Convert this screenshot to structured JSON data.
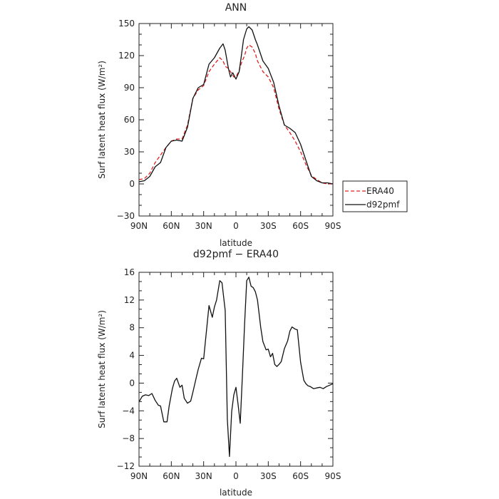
{
  "chart_data": [
    {
      "type": "line",
      "title": "ANN",
      "xlabel": "latitude",
      "ylabel": "Surf latent heat flux (W/m²)",
      "xlim": [
        -90,
        90
      ],
      "ylim": [
        -30,
        150
      ],
      "x_ticks": [
        "90N",
        "60N",
        "30N",
        "0",
        "30S",
        "60S",
        "90S"
      ],
      "y_ticks": [
        "−30",
        "0",
        "30",
        "60",
        "90",
        "120",
        "150"
      ],
      "legend": "right",
      "series": [
        {
          "name": "ERA40",
          "color": "#e02020",
          "dash": true,
          "x": [
            -90,
            -85,
            -80,
            -75,
            -70,
            -65,
            -60,
            -55,
            -50,
            -45,
            -40,
            -35,
            -30,
            -25,
            -20,
            -15,
            -12,
            -10,
            -7,
            -5,
            -2,
            0,
            3,
            5,
            8,
            10,
            12,
            15,
            18,
            20,
            25,
            30,
            35,
            40,
            45,
            50,
            55,
            60,
            65,
            70,
            75,
            80,
            85,
            90
          ],
          "y": [
            4,
            5,
            10,
            20,
            27,
            34,
            40,
            42,
            42,
            55,
            80,
            88,
            92,
            105,
            112,
            118,
            115,
            110,
            108,
            105,
            100,
            100,
            106,
            113,
            120,
            127,
            130,
            128,
            122,
            115,
            105,
            100,
            90,
            70,
            55,
            48,
            40,
            30,
            18,
            8,
            4,
            1,
            0,
            0
          ]
        },
        {
          "name": "d92pmf",
          "color": "#111111",
          "dash": false,
          "x": [
            -90,
            -85,
            -80,
            -75,
            -70,
            -65,
            -60,
            -55,
            -50,
            -45,
            -40,
            -35,
            -30,
            -25,
            -20,
            -15,
            -12,
            -10,
            -7,
            -5,
            -3,
            0,
            3,
            5,
            7,
            10,
            12,
            15,
            18,
            20,
            25,
            30,
            35,
            40,
            45,
            50,
            55,
            60,
            65,
            70,
            75,
            80,
            85,
            90
          ],
          "y": [
            2,
            3,
            7,
            16,
            20,
            34,
            40,
            41,
            40,
            53,
            80,
            90,
            93,
            112,
            118,
            127,
            131,
            125,
            108,
            100,
            104,
            98,
            105,
            120,
            135,
            145,
            147,
            144,
            135,
            130,
            115,
            108,
            95,
            73,
            55,
            52,
            48,
            37,
            22,
            7,
            3,
            1,
            1,
            0
          ]
        }
      ]
    },
    {
      "type": "line",
      "title": "d92pmf − ERA40",
      "xlabel": "latitude",
      "ylabel": "Surf latent heat flux (W/m²)",
      "xlim": [
        -90,
        90
      ],
      "ylim": [
        -12,
        16
      ],
      "x_ticks": [
        "90N",
        "60N",
        "30N",
        "0",
        "30S",
        "60S",
        "90S"
      ],
      "y_ticks": [
        "−12",
        "−8",
        "−4",
        "0",
        "4",
        "8",
        "12",
        "16"
      ],
      "series": [
        {
          "color": "#111111",
          "x": [
            -90,
            -87,
            -84,
            -81,
            -78,
            -75,
            -72,
            -70,
            -67,
            -64,
            -62,
            -59,
            -57,
            -55,
            -52,
            -50,
            -48,
            -45,
            -42,
            -40,
            -37,
            -35,
            -32,
            -30,
            -28,
            -25,
            -22,
            -20,
            -18,
            -15,
            -13,
            -10,
            -8,
            -6,
            -4,
            -2,
            0,
            2,
            4,
            6,
            8,
            10,
            12,
            14,
            16,
            18,
            20,
            23,
            25,
            28,
            30,
            32,
            34,
            36,
            38,
            40,
            42,
            45,
            48,
            50,
            52,
            55,
            57,
            60,
            63,
            65,
            67,
            69,
            72,
            75,
            78,
            81,
            84,
            87,
            90
          ],
          "y": [
            -2.7,
            -1.9,
            -1.7,
            -1.8,
            -1.5,
            -2.5,
            -3.2,
            -3.3,
            -5.6,
            -5.6,
            -3.3,
            -0.8,
            0.3,
            0.7,
            -0.6,
            -0.3,
            -2.2,
            -2.9,
            -2.6,
            -1.3,
            0.7,
            2,
            3.6,
            3.5,
            6.6,
            11.2,
            9.5,
            11,
            12,
            14.8,
            14.5,
            10.5,
            -5.2,
            -10.6,
            -4.1,
            -1.7,
            -0.6,
            -3.1,
            -5.8,
            1.2,
            8.5,
            14.8,
            15.3,
            14,
            13.8,
            13.2,
            12,
            8,
            6,
            4.8,
            4.9,
            3.8,
            4.3,
            2.7,
            2.4,
            2.7,
            3.1,
            5,
            6.1,
            7.5,
            8.1,
            7.8,
            7.7,
            3,
            0.4,
            -0.1,
            -0.4,
            -0.5,
            -0.8,
            -0.7,
            -0.6,
            -0.8,
            -0.5,
            -0.3,
            -0.1
          ]
        }
      ]
    }
  ]
}
